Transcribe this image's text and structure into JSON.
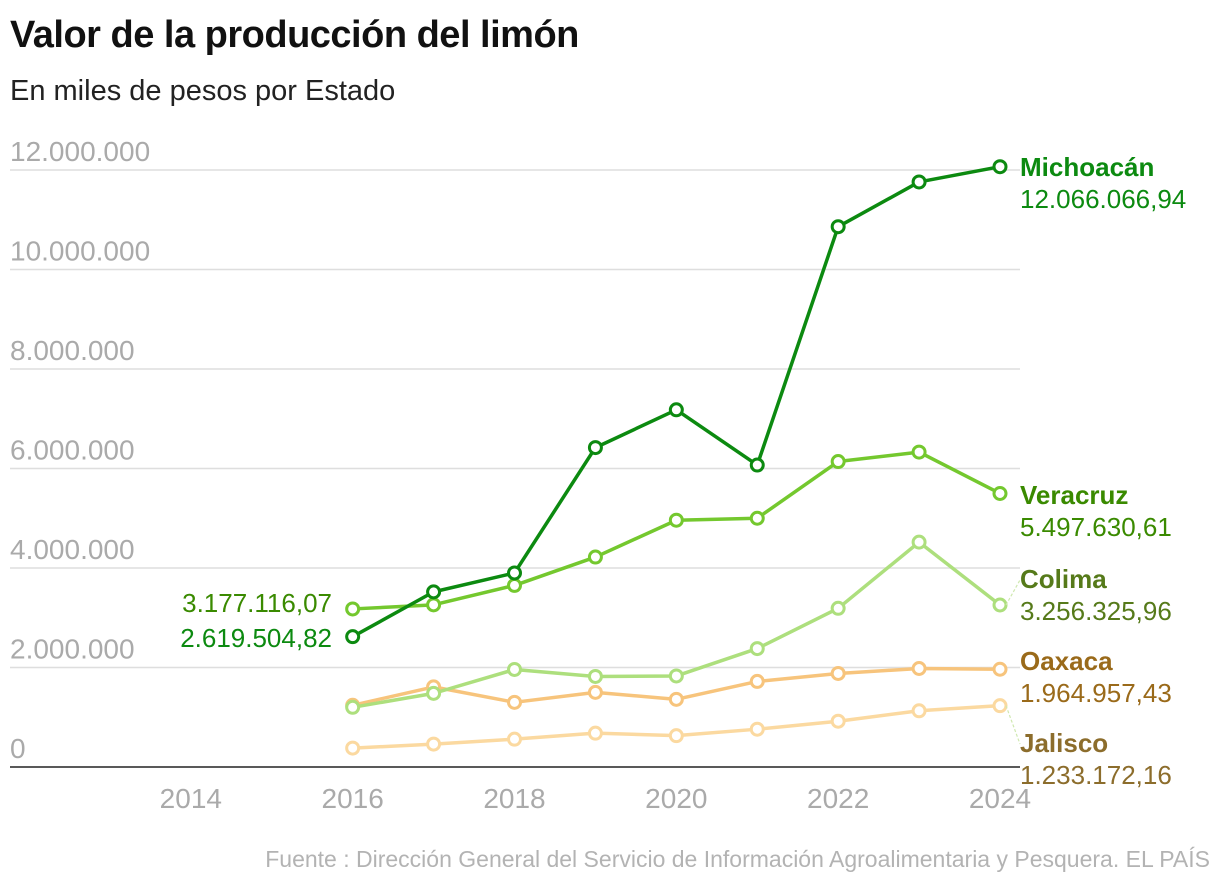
{
  "title": "Valor de la producción del limón",
  "subtitle": "En miles de pesos por Estado",
  "source": "Fuente : Dirección General del Servicio de Información Agroalimentaria y Pesquera. EL PAÍS",
  "chart_data": {
    "type": "line",
    "title": "Valor de la producción del limón",
    "subtitle": "En miles de pesos por Estado",
    "xlabel": "",
    "ylabel": "",
    "xlim": [
      2012,
      2024
    ],
    "ylim": [
      0,
      12000000
    ],
    "x_ticks": [
      {
        "value": 2014,
        "label": "2014"
      },
      {
        "value": 2016,
        "label": "2016"
      },
      {
        "value": 2018,
        "label": "2018"
      },
      {
        "value": 2020,
        "label": "2020"
      },
      {
        "value": 2022,
        "label": "2022"
      },
      {
        "value": 2024,
        "label": "2024"
      }
    ],
    "y_ticks": [
      {
        "value": 0,
        "label": "0"
      },
      {
        "value": 2000000,
        "label": "2.000.000"
      },
      {
        "value": 4000000,
        "label": "4.000.000"
      },
      {
        "value": 6000000,
        "label": "6.000.000"
      },
      {
        "value": 8000000,
        "label": "8.000.000"
      },
      {
        "value": 10000000,
        "label": "10.000.000"
      },
      {
        "value": 12000000,
        "label": "12.000.000"
      }
    ],
    "grid": true,
    "x": [
      2016,
      2017,
      2018,
      2019,
      2020,
      2021,
      2022,
      2023,
      2024
    ],
    "series": [
      {
        "name": "Jalisco",
        "color": "#fbd9a0",
        "label_color": "#8c6d2c",
        "end_label": "1.233.172,16",
        "values": [
          380000,
          460000,
          560000,
          680000,
          630000,
          760000,
          920000,
          1130000,
          1233172.16
        ]
      },
      {
        "name": "Oaxaca",
        "color": "#f7c47c",
        "label_color": "#9a6a1a",
        "end_label": "1.964.957,43",
        "values": [
          1240000,
          1610000,
          1300000,
          1500000,
          1360000,
          1720000,
          1880000,
          1980000,
          1964957.43
        ]
      },
      {
        "name": "Colima",
        "color": "#addf7d",
        "label_color": "#567a1a",
        "end_label": "3.256.325,96",
        "values": [
          1200000,
          1480000,
          1960000,
          1820000,
          1830000,
          2380000,
          3190000,
          4520000,
          3256325.96
        ]
      },
      {
        "name": "Veracruz",
        "color": "#74c82e",
        "label_color": "#3a8a00",
        "start_label": "3.177.116,07",
        "end_label": "5.497.630,61",
        "values": [
          3177116.07,
          3260000,
          3650000,
          4220000,
          4960000,
          5000000,
          6140000,
          6330000,
          5497630.61
        ]
      },
      {
        "name": "Michoacán",
        "color": "#0c8a10",
        "label_color": "#0c8a10",
        "start_label": "2.619.504,82",
        "end_label": "12.066.066,94",
        "values": [
          2619504.82,
          3520000,
          3900000,
          6420000,
          7180000,
          6070000,
          10860000,
          11760000,
          12066066.94
        ]
      }
    ]
  }
}
